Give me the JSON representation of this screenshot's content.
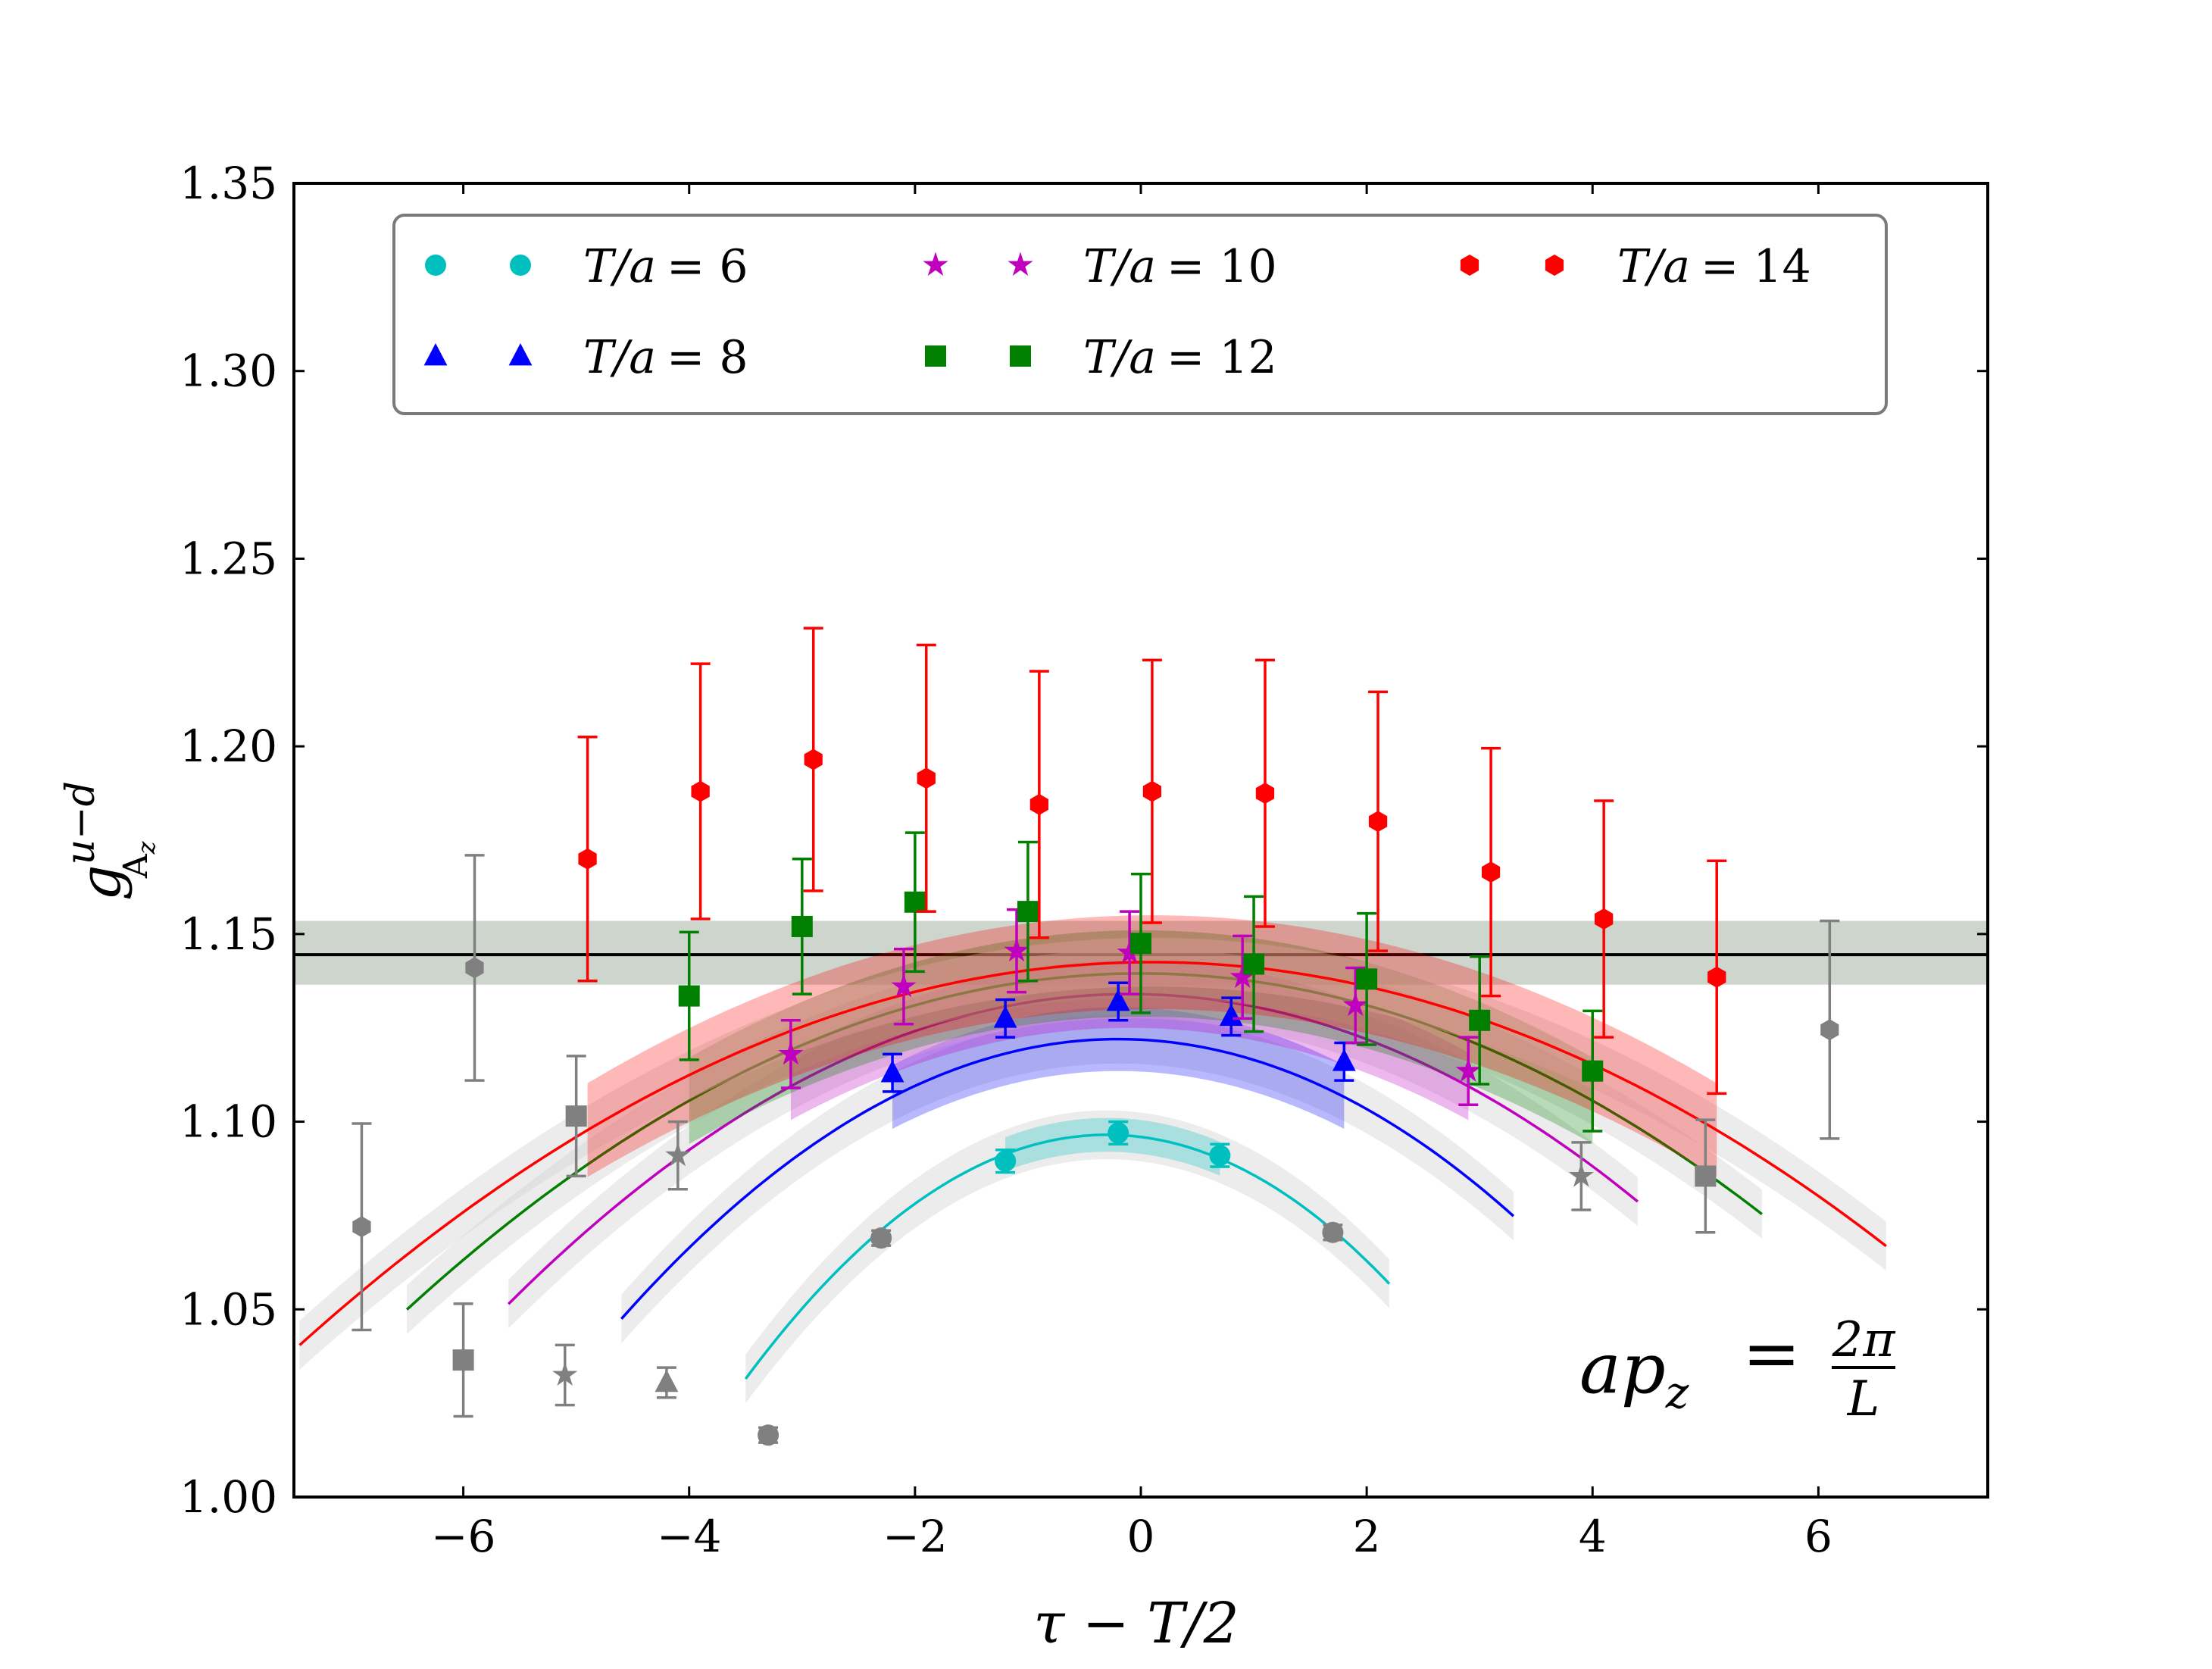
{
  "chart_data": {
    "type": "scatter",
    "title": "",
    "xlabel": "τ − T/2",
    "ylabel_main": "g",
    "ylabel_sup": "u−d",
    "ylabel_sub": "A",
    "ylabel_subsub": "z",
    "xlim": [
      -7.5,
      7.5
    ],
    "ylim": [
      1.0,
      1.35
    ],
    "xticks": [
      -6,
      -4,
      -2,
      0,
      2,
      4,
      6
    ],
    "xtick_labels": [
      "−6",
      "−4",
      "−2",
      "0",
      "2",
      "4",
      "6"
    ],
    "yticks": [
      1.0,
      1.05,
      1.1,
      1.15,
      1.2,
      1.25,
      1.3,
      1.35
    ],
    "ytick_labels": [
      "1.00",
      "1.05",
      "1.10",
      "1.15",
      "1.20",
      "1.25",
      "1.30",
      "1.35"
    ],
    "grid": false,
    "legend_position": "top",
    "annotation": {
      "lhs": "ap",
      "sub": "z",
      "eq": "=",
      "num": "2π",
      "den": "L"
    },
    "band": {
      "center": 1.1445,
      "low": 1.1365,
      "high": 1.1535,
      "color": "#a4b2a4"
    },
    "series": [
      {
        "name": "T/a = 6",
        "label_lhs": "T/a",
        "label_rhs": "= 6",
        "color": "#00bfbf",
        "marker": "circle",
        "T": 6,
        "x": [
          -3.3,
          -2.3,
          -1.2,
          -0.2,
          0.7,
          1.7
        ],
        "y": [
          1.0165,
          1.069,
          1.0895,
          1.097,
          1.091,
          1.0705
        ],
        "err": [
          0.002,
          0.002,
          0.003,
          0.003,
          0.003,
          0.002
        ],
        "fit_center": 1.0965,
        "fit_curv": 0.00635,
        "fit_shift": -0.3,
        "fit_x": [
          -3.5,
          2.2
        ],
        "fit_band": [
          -1.2,
          0.7
        ],
        "fit_band_width": 0.0045
      },
      {
        "name": "T/a = 8",
        "label_lhs": "T/a",
        "label_rhs": "= 8",
        "color": "#0000ff",
        "marker": "triangle",
        "T": 8,
        "x": [
          -4.2,
          -2.2,
          -1.2,
          -0.2,
          0.8,
          1.8
        ],
        "y": [
          1.0305,
          1.113,
          1.1275,
          1.132,
          1.128,
          1.116
        ],
        "err": [
          0.004,
          0.005,
          0.005,
          0.005,
          0.005,
          0.005
        ],
        "fit_center": 1.122,
        "fit_curv": 0.00385,
        "fit_shift": -0.2,
        "fit_x": [
          -4.6,
          3.3
        ],
        "fit_band": [
          -2.2,
          1.8
        ],
        "fit_band_width": 0.0085
      },
      {
        "name": "T/a = 10",
        "label_lhs": "T/a",
        "label_rhs": "= 10",
        "color": "#bf00bf",
        "marker": "star",
        "T": 10,
        "x": [
          -5.1,
          -4.1,
          -3.1,
          -2.1,
          -1.1,
          -0.1,
          0.9,
          1.9,
          2.9,
          3.9
        ],
        "y": [
          1.0325,
          1.091,
          1.118,
          1.136,
          1.1455,
          1.145,
          1.1385,
          1.131,
          1.1135,
          1.0855
        ],
        "err": [
          0.008,
          0.009,
          0.009,
          0.01,
          0.011,
          0.011,
          0.011,
          0.01,
          0.009,
          0.009
        ],
        "fit_center": 1.134,
        "fit_curv": 0.00273,
        "fit_shift": -0.1,
        "fit_x": [
          -5.6,
          4.4
        ],
        "fit_band": [
          -3.1,
          2.9
        ],
        "fit_band_width": 0.009
      },
      {
        "name": "T/a = 12",
        "label_lhs": "T/a",
        "label_rhs": "= 12",
        "color": "#007f00",
        "marker": "square",
        "T": 12,
        "x": [
          -6.0,
          -5.0,
          -4.0,
          -3.0,
          -2.0,
          -1.0,
          0.0,
          1.0,
          2.0,
          3.0,
          4.0,
          5.0
        ],
        "y": [
          1.0365,
          1.1015,
          1.1335,
          1.152,
          1.1585,
          1.156,
          1.1475,
          1.142,
          1.138,
          1.127,
          1.1135,
          1.0855
        ],
        "err": [
          0.015,
          0.016,
          0.017,
          0.018,
          0.0185,
          0.0185,
          0.0185,
          0.018,
          0.0175,
          0.017,
          0.016,
          0.015
        ],
        "fit_center": 1.1395,
        "fit_curv": 0.00212,
        "fit_shift": 0.0,
        "fit_x": [
          -6.5,
          5.5
        ],
        "fit_band": [
          -4.0,
          4.0
        ],
        "fit_band_width": 0.0115
      },
      {
        "name": "T/a = 14",
        "label_lhs": "T/a",
        "label_rhs": "= 14",
        "color": "#ff0000",
        "marker": "hexagon",
        "T": 14,
        "x": [
          -6.9,
          -5.9,
          -4.9,
          -3.9,
          -2.9,
          -1.9,
          -0.9,
          0.1,
          1.1,
          2.1,
          3.1,
          4.1,
          5.1,
          6.1
        ],
        "y": [
          1.072,
          1.141,
          1.17,
          1.188,
          1.1965,
          1.1915,
          1.1845,
          1.188,
          1.1875,
          1.18,
          1.1665,
          1.154,
          1.1385,
          1.1245
        ],
        "err": [
          0.0275,
          0.03,
          0.0325,
          0.034,
          0.035,
          0.0355,
          0.0355,
          0.035,
          0.0355,
          0.0345,
          0.033,
          0.0315,
          0.031,
          0.029
        ],
        "fit_center": 1.1425,
        "fit_curv": 0.00179,
        "fit_shift": 0.1,
        "fit_x": [
          -7.45,
          6.6
        ],
        "fit_band": [
          -4.9,
          5.1
        ],
        "fit_band_width": 0.0125
      }
    ]
  }
}
